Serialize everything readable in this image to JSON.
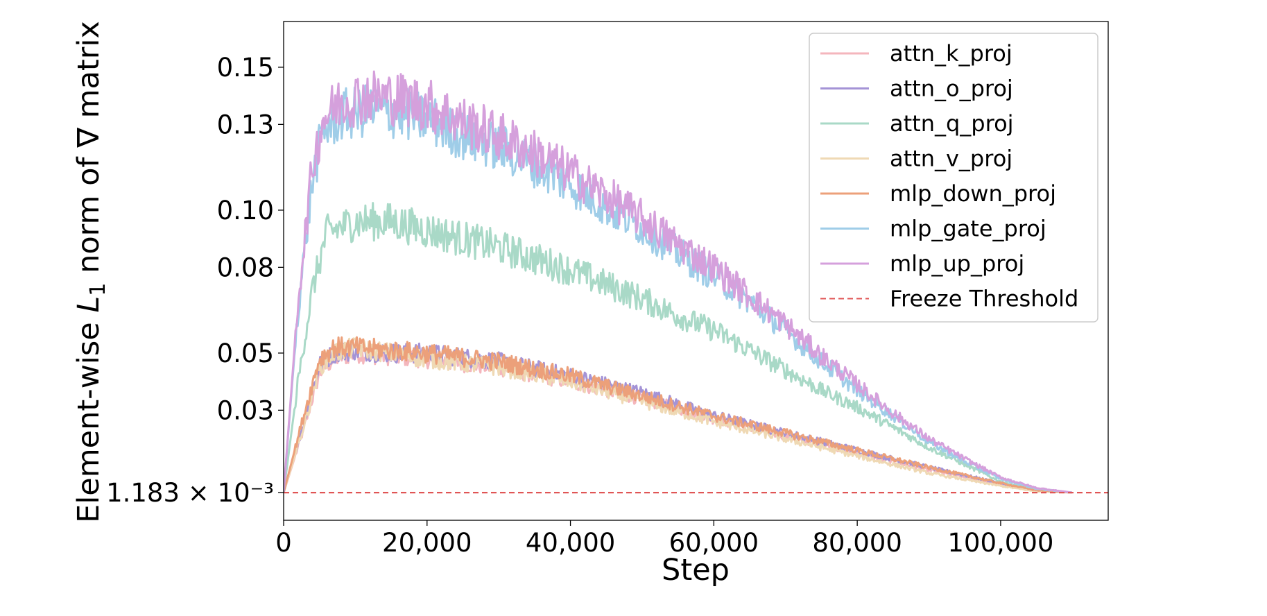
{
  "chart_data": {
    "type": "line",
    "title": "",
    "xlabel": "Step",
    "ylabel_parts": {
      "before": "Element-wise ",
      "italic": "L",
      "sub": "1",
      "after": " norm of ∇ matrix"
    },
    "xlim": [
      0,
      115000
    ],
    "ylim": [
      -0.0085,
      0.166
    ],
    "x_ticks": [
      0,
      20000,
      40000,
      60000,
      80000,
      100000
    ],
    "x_tick_labels": [
      "0",
      "20,000",
      "40,000",
      "60,000",
      "80,000",
      "100,000"
    ],
    "y_ticks": [
      0.001183,
      0.03,
      0.05,
      0.08,
      0.1,
      0.13,
      0.15
    ],
    "y_tick_labels": [
      "1.183 × 10⁻³",
      "0.03",
      "0.05",
      "0.08",
      "0.10",
      "0.13",
      "0.15"
    ],
    "legend_position": "top-right",
    "series": [
      {
        "name": "attn_k_proj",
        "color": "#f4b6bc",
        "x": [
          0,
          3000,
          5000,
          7000,
          10000,
          15000,
          20000,
          30000,
          40000,
          50000,
          60000,
          70000,
          80000,
          90000,
          100000,
          105000,
          110000
        ],
        "values": [
          0.0012,
          0.025,
          0.043,
          0.048,
          0.05,
          0.049,
          0.048,
          0.045,
          0.04,
          0.034,
          0.027,
          0.021,
          0.015,
          0.009,
          0.004,
          0.0018,
          0.0012
        ]
      },
      {
        "name": "attn_o_proj",
        "color": "#a493d6",
        "x": [
          0,
          3000,
          5000,
          7000,
          10000,
          15000,
          20000,
          30000,
          40000,
          50000,
          60000,
          70000,
          80000,
          90000,
          100000,
          105000,
          110000
        ],
        "values": [
          0.0012,
          0.027,
          0.046,
          0.05,
          0.051,
          0.05,
          0.05,
          0.047,
          0.042,
          0.036,
          0.028,
          0.022,
          0.016,
          0.01,
          0.0045,
          0.002,
          0.0012
        ]
      },
      {
        "name": "attn_q_proj",
        "color": "#a9d9c7",
        "x": [
          0,
          2000,
          4000,
          6000,
          10000,
          15000,
          20000,
          25000,
          30000,
          35000,
          40000,
          45000,
          50000,
          55000,
          60000,
          65000,
          70000,
          75000,
          80000,
          85000,
          90000,
          95000,
          100000,
          105000,
          110000
        ],
        "values": [
          0.0012,
          0.04,
          0.072,
          0.092,
          0.096,
          0.096,
          0.093,
          0.09,
          0.087,
          0.083,
          0.079,
          0.074,
          0.069,
          0.063,
          0.058,
          0.051,
          0.044,
          0.037,
          0.031,
          0.024,
          0.017,
          0.011,
          0.005,
          0.0022,
          0.0012
        ]
      },
      {
        "name": "attn_v_proj",
        "color": "#efd9b4",
        "x": [
          0,
          3000,
          5000,
          7000,
          10000,
          15000,
          20000,
          30000,
          40000,
          50000,
          60000,
          70000,
          80000,
          90000,
          100000,
          105000,
          110000
        ],
        "values": [
          0.0012,
          0.026,
          0.045,
          0.05,
          0.052,
          0.05,
          0.048,
          0.045,
          0.04,
          0.033,
          0.026,
          0.02,
          0.014,
          0.008,
          0.0035,
          0.0016,
          0.0012
        ]
      },
      {
        "name": "mlp_down_proj",
        "color": "#eca07a",
        "x": [
          0,
          3000,
          5000,
          7000,
          10000,
          15000,
          20000,
          30000,
          40000,
          50000,
          60000,
          70000,
          80000,
          90000,
          100000,
          105000,
          110000
        ],
        "values": [
          0.0012,
          0.03,
          0.048,
          0.052,
          0.052,
          0.051,
          0.05,
          0.047,
          0.042,
          0.035,
          0.028,
          0.022,
          0.016,
          0.01,
          0.0045,
          0.002,
          0.0012
        ]
      },
      {
        "name": "mlp_gate_proj",
        "color": "#9fcde8",
        "x": [
          0,
          2000,
          4000,
          5500,
          8000,
          12000,
          16000,
          20000,
          25000,
          30000,
          35000,
          40000,
          45000,
          50000,
          55000,
          60000,
          65000,
          70000,
          75000,
          80000,
          85000,
          90000,
          95000,
          100000,
          105000,
          110000
        ],
        "values": [
          0.0012,
          0.065,
          0.11,
          0.128,
          0.133,
          0.135,
          0.134,
          0.132,
          0.126,
          0.122,
          0.116,
          0.109,
          0.101,
          0.094,
          0.085,
          0.077,
          0.068,
          0.058,
          0.047,
          0.037,
          0.028,
          0.019,
          0.012,
          0.006,
          0.0025,
          0.0012
        ]
      },
      {
        "name": "mlp_up_proj",
        "color": "#d5a0dc",
        "x": [
          0,
          2000,
          4000,
          5500,
          8000,
          12000,
          16000,
          20000,
          25000,
          30000,
          35000,
          40000,
          45000,
          50000,
          55000,
          60000,
          65000,
          70000,
          75000,
          80000,
          85000,
          90000,
          95000,
          100000,
          105000,
          110000
        ],
        "values": [
          0.0012,
          0.068,
          0.115,
          0.132,
          0.138,
          0.14,
          0.139,
          0.137,
          0.131,
          0.126,
          0.12,
          0.113,
          0.105,
          0.097,
          0.088,
          0.08,
          0.07,
          0.06,
          0.049,
          0.039,
          0.029,
          0.02,
          0.013,
          0.0065,
          0.0028,
          0.0012
        ]
      }
    ],
    "threshold": {
      "name": "Freeze Threshold",
      "value": 0.001183,
      "color": "#e05555",
      "style": "dashed"
    }
  }
}
